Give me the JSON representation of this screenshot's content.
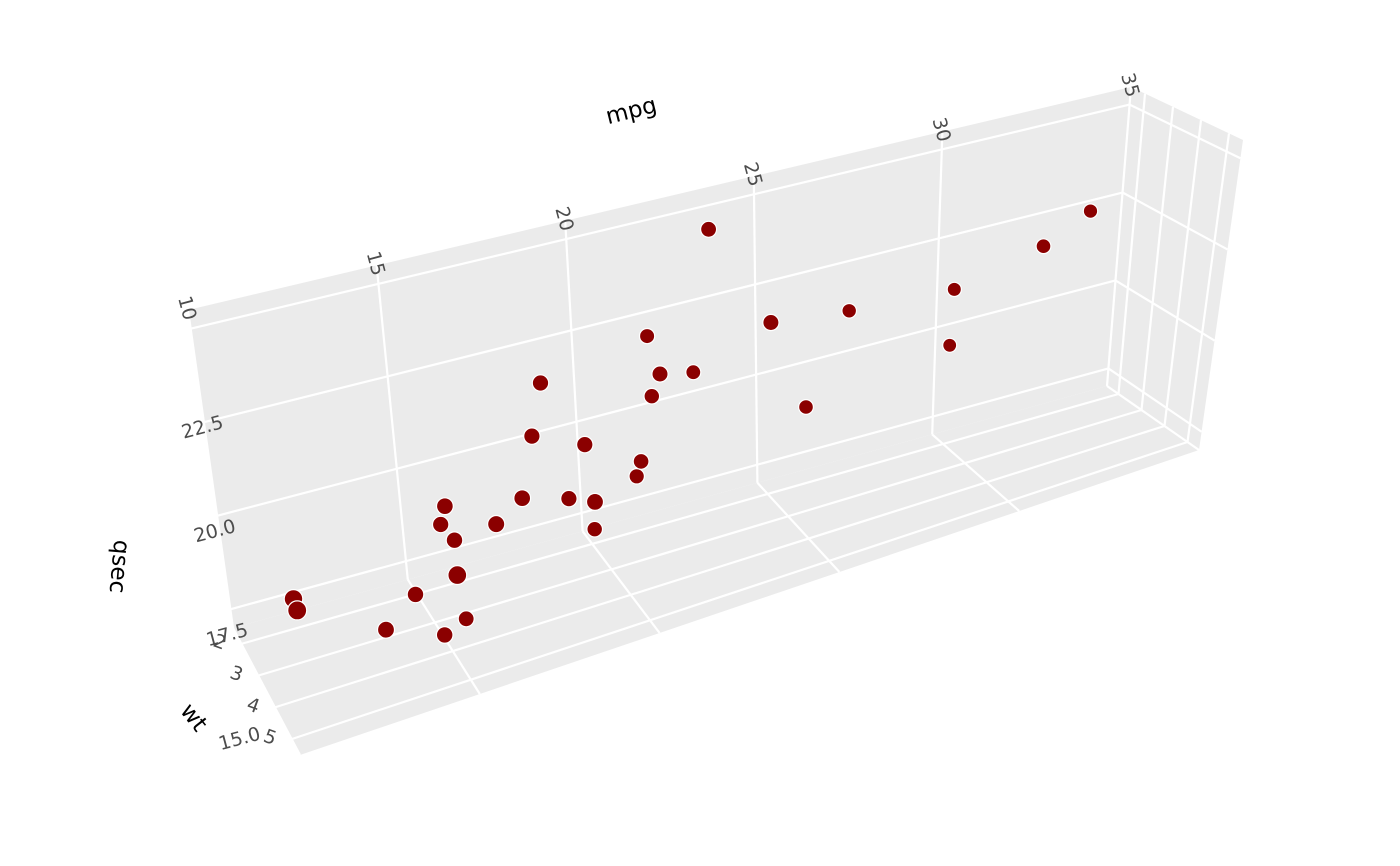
{
  "chart_data": {
    "type": "scatter",
    "projection": "3d",
    "title": "",
    "grid": true,
    "colors": {
      "panel": "#ebebeb",
      "grid": "#ffffff",
      "point": "#8b0000",
      "tick_text": "#4d4d4d",
      "title_text": "#000000"
    },
    "axes": {
      "x": {
        "label": "mpg",
        "ticks": [
          "10",
          "15",
          "20",
          "25",
          "30",
          "35"
        ],
        "values": [
          10,
          15,
          20,
          25,
          30,
          35
        ],
        "range": [
          10,
          35
        ]
      },
      "y": {
        "label": "wt",
        "ticks": [
          "2",
          "3",
          "4",
          "5"
        ],
        "values": [
          2,
          3,
          4,
          5
        ],
        "range": [
          1.5,
          5.5
        ]
      },
      "z": {
        "label": "qsec",
        "ticks": [
          "15.0",
          "17.5",
          "20.0",
          "22.5"
        ],
        "values": [
          15.0,
          17.5,
          20.0,
          22.5
        ],
        "range": [
          14.5,
          23
        ]
      }
    },
    "points": [
      {
        "x": 21.0,
        "y": 2.62,
        "z": 16.46
      },
      {
        "x": 21.0,
        "y": 2.875,
        "z": 17.02
      },
      {
        "x": 22.8,
        "y": 2.32,
        "z": 18.61
      },
      {
        "x": 21.4,
        "y": 3.215,
        "z": 19.44
      },
      {
        "x": 18.7,
        "y": 3.44,
        "z": 17.02
      },
      {
        "x": 18.1,
        "y": 3.46,
        "z": 20.22
      },
      {
        "x": 14.3,
        "y": 3.57,
        "z": 15.84
      },
      {
        "x": 24.4,
        "y": 3.19,
        "z": 20.0
      },
      {
        "x": 22.8,
        "y": 3.15,
        "z": 22.9
      },
      {
        "x": 19.2,
        "y": 3.44,
        "z": 18.3
      },
      {
        "x": 17.8,
        "y": 3.44,
        "z": 18.9
      },
      {
        "x": 16.4,
        "y": 4.07,
        "z": 17.4
      },
      {
        "x": 17.3,
        "y": 3.73,
        "z": 17.6
      },
      {
        "x": 15.2,
        "y": 3.78,
        "z": 18.0
      },
      {
        "x": 10.4,
        "y": 5.25,
        "z": 17.98
      },
      {
        "x": 10.4,
        "y": 5.424,
        "z": 17.82
      },
      {
        "x": 14.7,
        "y": 5.345,
        "z": 17.42
      },
      {
        "x": 32.4,
        "y": 2.2,
        "z": 19.47
      },
      {
        "x": 30.4,
        "y": 1.615,
        "z": 18.52
      },
      {
        "x": 33.9,
        "y": 1.835,
        "z": 19.9
      },
      {
        "x": 21.5,
        "y": 2.465,
        "z": 20.01
      },
      {
        "x": 15.5,
        "y": 3.52,
        "z": 16.87
      },
      {
        "x": 15.2,
        "y": 3.435,
        "z": 17.3
      },
      {
        "x": 13.3,
        "y": 3.84,
        "z": 15.41
      },
      {
        "x": 19.2,
        "y": 3.845,
        "z": 17.05
      },
      {
        "x": 27.3,
        "y": 1.935,
        "z": 18.9
      },
      {
        "x": 26.0,
        "y": 2.14,
        "z": 16.7
      },
      {
        "x": 30.4,
        "y": 1.513,
        "z": 16.9
      },
      {
        "x": 15.8,
        "y": 3.17,
        "z": 14.5
      },
      {
        "x": 19.7,
        "y": 2.77,
        "z": 15.5
      },
      {
        "x": 15.0,
        "y": 3.57,
        "z": 14.6
      },
      {
        "x": 21.4,
        "y": 2.78,
        "z": 18.6
      }
    ]
  }
}
